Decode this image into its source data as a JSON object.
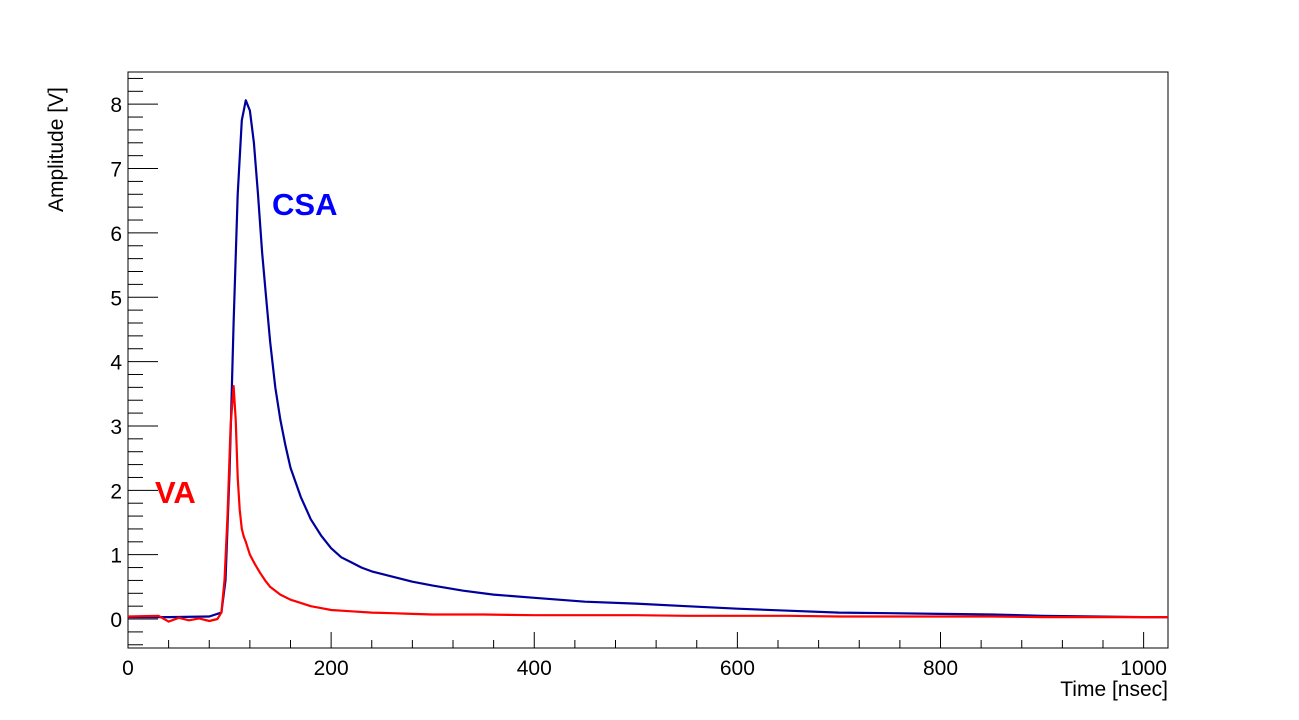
{
  "chart_data": {
    "type": "line",
    "xlabel": "Time [nsec]",
    "ylabel": "Amplitude [V]",
    "xlim": [
      0,
      1024
    ],
    "ylim": [
      -0.45,
      8.5
    ],
    "x_ticks": [
      0,
      200,
      400,
      600,
      800,
      1000
    ],
    "y_ticks": [
      0,
      1,
      2,
      3,
      4,
      5,
      6,
      7,
      8
    ],
    "grid": false,
    "series": [
      {
        "name": "CSA",
        "color": "#0000ff",
        "line_color": "#00009c",
        "x": [
          0,
          40,
          80,
          92,
          96,
          100,
          104,
          108,
          112,
          116,
          120,
          124,
          128,
          132,
          136,
          140,
          145,
          150,
          155,
          160,
          170,
          180,
          190,
          200,
          210,
          220,
          230,
          240,
          260,
          280,
          300,
          330,
          360,
          400,
          450,
          500,
          550,
          600,
          650,
          700,
          750,
          800,
          850,
          900,
          950,
          1000,
          1024
        ],
        "y": [
          0.03,
          0.03,
          0.04,
          0.1,
          0.6,
          2.3,
          4.6,
          6.6,
          7.75,
          8.06,
          7.9,
          7.4,
          6.6,
          5.7,
          5.0,
          4.3,
          3.6,
          3.1,
          2.7,
          2.35,
          1.9,
          1.55,
          1.3,
          1.1,
          0.96,
          0.88,
          0.8,
          0.74,
          0.66,
          0.58,
          0.52,
          0.44,
          0.38,
          0.33,
          0.27,
          0.24,
          0.2,
          0.16,
          0.13,
          0.1,
          0.09,
          0.08,
          0.07,
          0.05,
          0.04,
          0.03,
          0.03
        ]
      },
      {
        "name": "VA",
        "color": "#ff0000",
        "line_color": "#ff0000",
        "x": [
          0,
          30,
          40,
          50,
          60,
          70,
          80,
          88,
          92,
          95,
          98,
          101,
          104,
          106,
          108,
          110,
          112,
          114,
          116,
          118,
          120,
          125,
          130,
          135,
          140,
          150,
          160,
          170,
          180,
          190,
          200,
          220,
          240,
          260,
          280,
          300,
          350,
          400,
          450,
          500,
          550,
          600,
          650,
          700,
          750,
          800,
          850,
          900,
          950,
          1000,
          1024
        ],
        "y": [
          0.04,
          0.05,
          -0.04,
          0.02,
          -0.02,
          0.01,
          -0.03,
          0.0,
          0.1,
          0.6,
          1.6,
          3.0,
          3.62,
          3.1,
          2.2,
          1.7,
          1.4,
          1.28,
          1.2,
          1.1,
          1.0,
          0.85,
          0.72,
          0.6,
          0.5,
          0.38,
          0.3,
          0.25,
          0.2,
          0.17,
          0.14,
          0.12,
          0.1,
          0.09,
          0.08,
          0.07,
          0.07,
          0.06,
          0.06,
          0.06,
          0.05,
          0.05,
          0.05,
          0.04,
          0.04,
          0.04,
          0.04,
          0.03,
          0.03,
          0.03,
          0.03
        ]
      }
    ]
  }
}
